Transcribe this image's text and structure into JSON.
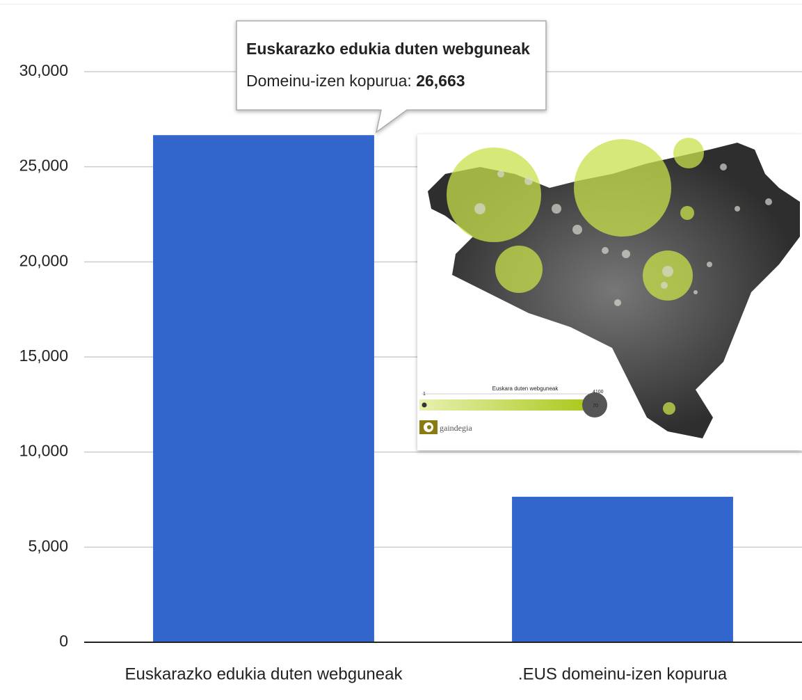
{
  "chart_data": {
    "type": "bar",
    "categories": [
      "Euskarazko edukia duten webguneak",
      ".EUS domeinu-izen kopurua"
    ],
    "values": [
      26663,
      7650
    ],
    "value_labels": [
      "26,663",
      null
    ],
    "color": "#3366cc",
    "ylim": [
      0,
      30000
    ],
    "yticks": [
      0,
      {
        "value": 5000,
        "label": "5,000"
      },
      {
        "value": 10000,
        "label": "10,000"
      },
      {
        "value": 15000,
        "label": "15,000"
      },
      {
        "value": 20000,
        "label": "20,000"
      },
      {
        "value": 25000,
        "label": "25,000"
      },
      {
        "value": 30000,
        "label": "30,000"
      }
    ],
    "grid": true,
    "tooltip": {
      "title": "Euskarazko edukia duten webguneak",
      "label": "Domeinu-izen kopurua:"
    },
    "inset": {
      "legend_title": "Euskara duten webguneak",
      "min": "1",
      "max": "4100",
      "marker": "70",
      "logo": "gaindegia"
    }
  }
}
